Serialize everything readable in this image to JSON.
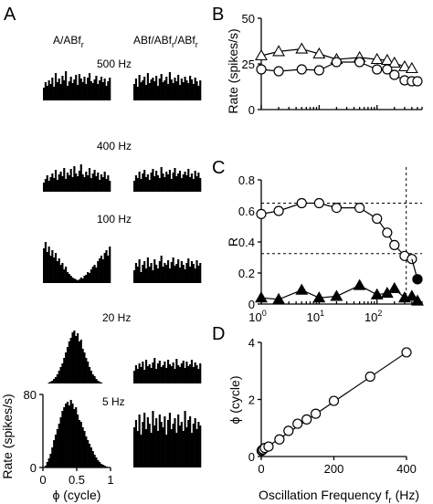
{
  "panels": {
    "A": {
      "letter": "A",
      "col_labels": [
        "A/ABf",
        "ABf/ABf"
      ],
      "col_label_subs": [
        [
          "r"
        ],
        [
          "r",
          "r"
        ]
      ],
      "freq_labels": [
        "500 Hz",
        "400 Hz",
        "100 Hz",
        "20 Hz",
        "5 Hz"
      ],
      "ylabel": "Rate (spikes/s)",
      "xlabel": "ϕ (cycle)",
      "y_ticks": [
        "0",
        "80"
      ],
      "x_ticks": [
        "0",
        "0.5",
        "1"
      ]
    },
    "B": {
      "letter": "B"
    },
    "C": {
      "letter": "C"
    },
    "D": {
      "letter": "D"
    }
  },
  "chart_data": [
    {
      "type": "bar",
      "panel": "A",
      "title": "",
      "xlabel": "ϕ (cycle)",
      "ylabel": "Rate (spikes/s)",
      "xlim": [
        0,
        1
      ],
      "ylim": [
        0,
        80
      ],
      "bins": 40,
      "rows": [
        {
          "label": "500 Hz",
          "left": [
            14,
            20,
            16,
            22,
            18,
            25,
            15,
            30,
            20,
            24,
            18,
            27,
            22,
            32,
            16,
            21,
            26,
            19,
            23,
            28,
            17,
            29,
            24,
            20,
            26,
            18,
            25,
            30,
            21,
            19,
            23,
            27,
            18,
            22,
            26,
            20,
            24,
            16,
            21,
            25
          ],
          "right": [
            18,
            24,
            15,
            28,
            20,
            22,
            26,
            17,
            30,
            19,
            23,
            25,
            21,
            27,
            16,
            24,
            29,
            20,
            22,
            26,
            18,
            31,
            23,
            19,
            25,
            21,
            28,
            17,
            24,
            20,
            26,
            22,
            19,
            27,
            23,
            18,
            25,
            21,
            16,
            22
          ]
        },
        {
          "label": "400 Hz",
          "left": [
            10,
            14,
            18,
            12,
            16,
            20,
            15,
            24,
            13,
            19,
            22,
            17,
            26,
            14,
            21,
            18,
            25,
            16,
            28,
            20,
            17,
            23,
            30,
            19,
            16,
            22,
            18,
            26,
            15,
            20,
            24,
            17,
            21,
            13,
            19,
            16,
            22,
            14,
            18,
            12
          ],
          "right": [
            12,
            18,
            15,
            22,
            14,
            20,
            24,
            16,
            19,
            13,
            21,
            25,
            17,
            23,
            18,
            15,
            27,
            20,
            16,
            22,
            19,
            24,
            14,
            21,
            26,
            17,
            20,
            23,
            15,
            19,
            22,
            18,
            25,
            16,
            20,
            14,
            23,
            17,
            21,
            15
          ]
        },
        {
          "label": "100 Hz",
          "left": [
            38,
            45,
            34,
            40,
            30,
            36,
            28,
            33,
            24,
            27,
            20,
            22,
            15,
            18,
            12,
            10,
            8,
            6,
            5,
            4,
            3,
            4,
            6,
            5,
            8,
            9,
            12,
            11,
            15,
            18,
            20,
            17,
            24,
            27,
            30,
            26,
            33,
            36,
            30,
            40
          ],
          "right": [
            14,
            22,
            18,
            26,
            12,
            20,
            24,
            16,
            28,
            18,
            22,
            14,
            26,
            20,
            16,
            24,
            30,
            18,
            22,
            20,
            25,
            16,
            23,
            28,
            19,
            21,
            26,
            17,
            24,
            20,
            15,
            22,
            27,
            18,
            24,
            21,
            16,
            25,
            19,
            22
          ]
        },
        {
          "label": "20 Hz",
          "left": [
            0,
            0,
            0,
            1,
            2,
            3,
            5,
            7,
            10,
            14,
            18,
            22,
            28,
            34,
            40,
            46,
            50,
            56,
            58,
            52,
            55,
            46,
            48,
            38,
            34,
            28,
            24,
            18,
            14,
            10,
            8,
            5,
            3,
            2,
            1,
            0,
            0,
            0,
            0,
            0
          ],
          "right": [
            14,
            20,
            16,
            22,
            18,
            24,
            15,
            26,
            19,
            21,
            17,
            23,
            28,
            16,
            22,
            25,
            18,
            20,
            24,
            17,
            26,
            21,
            19,
            23,
            16,
            27,
            20,
            18,
            22,
            25,
            17,
            24,
            19,
            21,
            26,
            18,
            23,
            20,
            16,
            22
          ]
        },
        {
          "label": "5 Hz",
          "left": [
            0,
            2,
            6,
            10,
            15,
            22,
            30,
            36,
            42,
            48,
            55,
            62,
            66,
            70,
            72,
            68,
            74,
            70,
            64,
            66,
            58,
            52,
            50,
            44,
            40,
            34,
            30,
            26,
            22,
            18,
            14,
            11,
            8,
            6,
            4,
            3,
            2,
            1,
            0,
            0
          ],
          "right": [
            44,
            52,
            40,
            58,
            36,
            50,
            60,
            42,
            55,
            48,
            38,
            62,
            46,
            54,
            40,
            58,
            50,
            44,
            56,
            36,
            52,
            60,
            42,
            48,
            54,
            38,
            58,
            46,
            50,
            40,
            62,
            44,
            52,
            56,
            38,
            48,
            54,
            42,
            50,
            46
          ]
        }
      ]
    },
    {
      "type": "line",
      "panel": "B",
      "xlabel": "",
      "ylabel": "Rate (spikes/s)",
      "xscale": "log",
      "xlim": [
        1,
        600
      ],
      "ylim": [
        0,
        50
      ],
      "y_ticks": [
        0,
        25,
        50
      ],
      "x_ticks": [],
      "series": [
        {
          "marker": "triangle-open",
          "x": [
            1,
            2,
            5,
            10,
            20,
            50,
            100,
            150,
            200,
            300,
            400
          ],
          "y": [
            29.5,
            31.8,
            33.2,
            30.5,
            27.5,
            28.5,
            27.5,
            27,
            25.5,
            23.5,
            22.5
          ]
        },
        {
          "marker": "circle-open",
          "x": [
            1,
            2,
            5,
            10,
            20,
            50,
            100,
            150,
            200,
            300,
            400,
            500
          ],
          "y": [
            22,
            21,
            22,
            21.5,
            26,
            26,
            22,
            22,
            19,
            16,
            15.5,
            15.5
          ]
        }
      ]
    },
    {
      "type": "line",
      "panel": "C",
      "xlabel": "",
      "ylabel": "R",
      "xscale": "log",
      "xlim": [
        1,
        600
      ],
      "ylim": [
        0,
        0.8
      ],
      "y_ticks": [
        0,
        0.2,
        0.4,
        0.6,
        0.8
      ],
      "x_ticks": [
        "10^0",
        "10^1",
        "10^2"
      ],
      "grid": false,
      "reference_lines": {
        "horizontal": [
          0.65,
          0.325
        ],
        "vertical": [
          320
        ]
      },
      "series": [
        {
          "marker": "circle-open",
          "x": [
            1,
            2,
            5,
            10,
            20,
            50,
            100,
            150,
            200,
            300,
            400
          ],
          "y": [
            0.58,
            0.6,
            0.65,
            0.65,
            0.62,
            0.62,
            0.55,
            0.46,
            0.38,
            0.31,
            0.29
          ]
        },
        {
          "marker": "circle-filled",
          "x": [
            500
          ],
          "y": [
            0.16
          ]
        },
        {
          "marker": "triangle-filled",
          "x": [
            1,
            2,
            5,
            10,
            20,
            50,
            100,
            150,
            200,
            300,
            400,
            500
          ],
          "y": [
            0.04,
            0.03,
            0.09,
            0.04,
            0.05,
            0.12,
            0.06,
            0.07,
            0.1,
            0.04,
            0.05,
            0.02
          ]
        }
      ]
    },
    {
      "type": "line",
      "panel": "D",
      "xlabel": "Oscillation Frequency f",
      "xlabel_sub": "r",
      "xlabel_unit": "(Hz)",
      "ylabel": "ϕ (cycle)",
      "xlim": [
        0,
        400
      ],
      "ylim": [
        0,
        4
      ],
      "x_ticks": [
        0,
        200,
        400
      ],
      "y_ticks": [
        0,
        2,
        4
      ],
      "series": [
        {
          "marker": "circle-open",
          "x": [
            1,
            2,
            5,
            10,
            20,
            50,
            75,
            100,
            125,
            150,
            200,
            300,
            400
          ],
          "y": [
            0.2,
            0.22,
            0.25,
            0.3,
            0.35,
            0.6,
            0.9,
            1.15,
            1.3,
            1.5,
            1.95,
            2.8,
            3.65
          ]
        }
      ]
    }
  ]
}
